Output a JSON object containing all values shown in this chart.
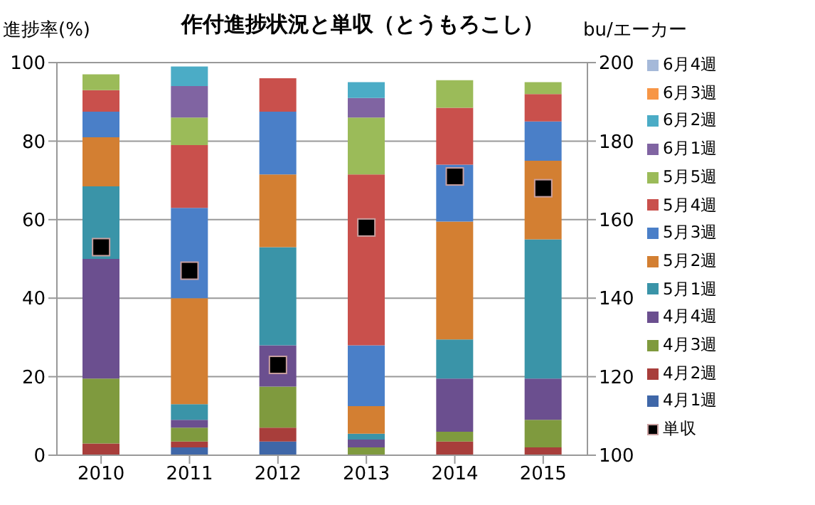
{
  "chart_data": {
    "type": "bar",
    "title": "作付進捗状況と単収（とうもろこし）",
    "ylabel": "進捗率(%)",
    "y2label": "bu/エーカー",
    "categories": [
      "2010",
      "2011",
      "2012",
      "2013",
      "2014",
      "2015"
    ],
    "stacked": true,
    "ylim": [
      0,
      100
    ],
    "yticks": [
      0,
      20,
      40,
      60,
      80,
      100
    ],
    "y2lim": [
      100,
      200
    ],
    "y2ticks": [
      100,
      120,
      140,
      160,
      180,
      200
    ],
    "grid": "y",
    "legend": "right",
    "series": [
      {
        "name": "4月1週",
        "color": "#3f67a8",
        "values": [
          0,
          2,
          3.5,
          0,
          0,
          0
        ]
      },
      {
        "name": "4月2週",
        "color": "#a83e3b",
        "values": [
          3,
          1.5,
          3.5,
          0,
          3.5,
          2
        ]
      },
      {
        "name": "4月3週",
        "color": "#7f9a3e",
        "values": [
          16.5,
          3.5,
          10.5,
          2,
          2.5,
          7
        ]
      },
      {
        "name": "4月4週",
        "color": "#6b4f8f",
        "values": [
          30.5,
          2,
          10.5,
          2,
          13.5,
          10.5
        ]
      },
      {
        "name": "5月1週",
        "color": "#3a94a8",
        "values": [
          18.5,
          4,
          25,
          1.5,
          10,
          35.5
        ]
      },
      {
        "name": "5月2週",
        "color": "#d37f32",
        "values": [
          12.5,
          27,
          18.5,
          7,
          30,
          20
        ]
      },
      {
        "name": "5月3週",
        "color": "#4a7fc8",
        "values": [
          6.5,
          23,
          16,
          15.5,
          14.5,
          10
        ]
      },
      {
        "name": "5月4週",
        "color": "#c9504c",
        "values": [
          5.5,
          16,
          8.5,
          43.5,
          14.5,
          7
        ]
      },
      {
        "name": "5月5週",
        "color": "#9bbb59",
        "values": [
          4,
          7,
          0,
          14.5,
          7,
          3
        ]
      },
      {
        "name": "6月1週",
        "color": "#8064a2",
        "values": [
          0,
          8,
          0,
          5,
          0,
          0
        ]
      },
      {
        "name": "6月2週",
        "color": "#4bacc6",
        "values": [
          0,
          5,
          0,
          4,
          0,
          0
        ]
      },
      {
        "name": "6月3週",
        "color": "#f79646",
        "values": [
          0,
          0,
          0,
          0,
          0,
          0
        ]
      },
      {
        "name": "6月4週",
        "color": "#a5b9d9",
        "values": [
          0,
          0,
          0,
          0,
          0,
          0
        ]
      },
      {
        "name": "単収",
        "type": "scatter",
        "axis": "y2",
        "marker": "square",
        "color": "#000000",
        "values": [
          153,
          147,
          123,
          158,
          171,
          168
        ]
      }
    ]
  }
}
